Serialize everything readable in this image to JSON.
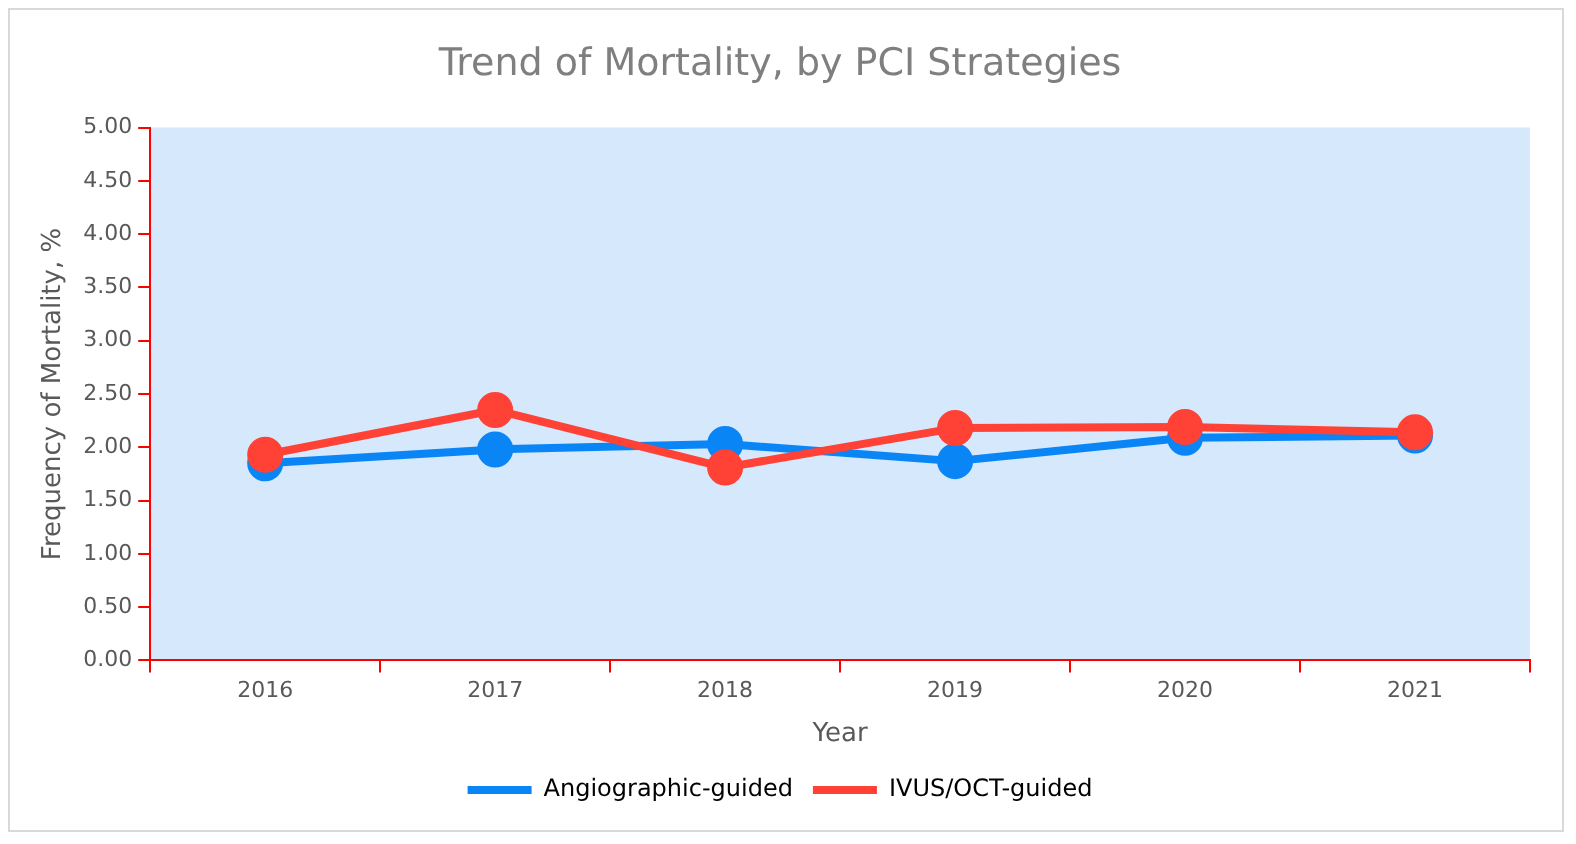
{
  "chart_data": {
    "type": "line",
    "title": "Trend of Mortality, by PCI Strategies",
    "xlabel": "Year",
    "ylabel": "Frequency of Mortality, %",
    "categories": [
      "2016",
      "2017",
      "2018",
      "2019",
      "2020",
      "2021"
    ],
    "series": [
      {
        "name": "Angiographic-guided",
        "color": "#0a85f5",
        "values": [
          1.85,
          1.98,
          2.03,
          1.87,
          2.09,
          2.11
        ]
      },
      {
        "name": "IVUS/OCT-guided",
        "color": "#ff4136",
        "values": [
          1.93,
          2.35,
          1.81,
          2.18,
          2.19,
          2.14
        ]
      }
    ],
    "ylim": [
      0,
      5
    ],
    "yticks": [
      {
        "value": 0,
        "label": "0.00"
      },
      {
        "value": 0.5,
        "label": "0.50"
      },
      {
        "value": 1,
        "label": "1.00"
      },
      {
        "value": 1.5,
        "label": "1.50"
      },
      {
        "value": 2,
        "label": "2.00"
      },
      {
        "value": 2.5,
        "label": "2.50"
      },
      {
        "value": 3,
        "label": "3.00"
      },
      {
        "value": 3.5,
        "label": "3.50"
      },
      {
        "value": 4,
        "label": "4.00"
      },
      {
        "value": 4.5,
        "label": "4.50"
      },
      {
        "value": 5,
        "label": "5.00"
      }
    ],
    "grid": false,
    "legend": "bottom",
    "marker": "circle",
    "line_style": "solid"
  }
}
